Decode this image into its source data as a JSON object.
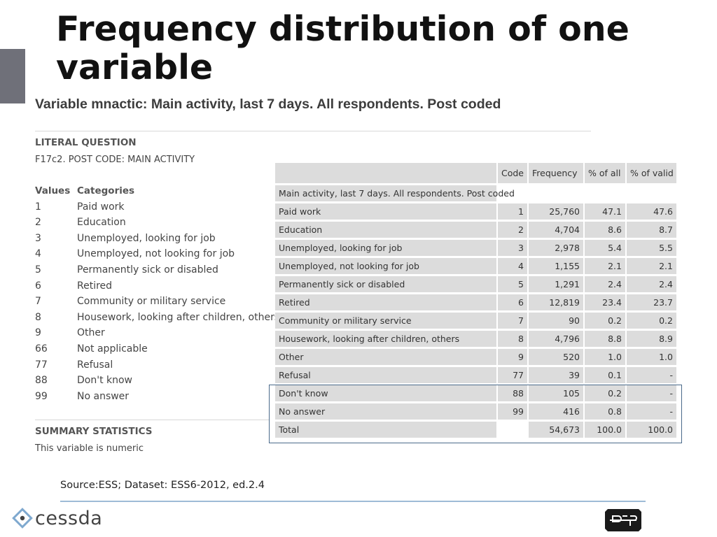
{
  "slide": {
    "title": "Frequency distribution of one variable",
    "source_note": "Source:ESS; Dataset: ESS6-2012, ed.2.4"
  },
  "variable": {
    "heading": "Variable mnactic: Main activity, last 7 days. All respondents. Post coded",
    "literal_question_heading": "LITERAL QUESTION",
    "literal_question_text": "F17c2. POST CODE: MAIN ACTIVITY",
    "values_header": "Values",
    "categories_header": "Categories",
    "values": [
      {
        "value": "1",
        "category": "Paid work"
      },
      {
        "value": "2",
        "category": "Education"
      },
      {
        "value": "3",
        "category": "Unemployed, looking for job"
      },
      {
        "value": "4",
        "category": "Unemployed, not looking for job"
      },
      {
        "value": "5",
        "category": "Permanently sick or disabled"
      },
      {
        "value": "6",
        "category": "Retired"
      },
      {
        "value": "7",
        "category": "Community or military service"
      },
      {
        "value": "8",
        "category": "Housework, looking after children, others"
      },
      {
        "value": "9",
        "category": "Other"
      },
      {
        "value": "66",
        "category": "Not applicable"
      },
      {
        "value": "77",
        "category": "Refusal"
      },
      {
        "value": "88",
        "category": "Don't know"
      },
      {
        "value": "99",
        "category": "No answer"
      }
    ],
    "summary_heading": "SUMMARY STATISTICS",
    "summary_text": "This variable is numeric"
  },
  "frequency_table": {
    "headers": {
      "code": "Code",
      "frequency": "Frequency",
      "pct_all": "% of all",
      "pct_valid": "% of valid"
    },
    "caption": "Main activity, last 7 days. All respondents. Post coded",
    "rows": [
      {
        "label": "Paid work",
        "code": "1",
        "frequency": "25,760",
        "pct_all": "47.1",
        "pct_valid": "47.6"
      },
      {
        "label": "Education",
        "code": "2",
        "frequency": "4,704",
        "pct_all": "8.6",
        "pct_valid": "8.7"
      },
      {
        "label": "Unemployed, looking for job",
        "code": "3",
        "frequency": "2,978",
        "pct_all": "5.4",
        "pct_valid": "5.5"
      },
      {
        "label": "Unemployed, not looking for job",
        "code": "4",
        "frequency": "1,155",
        "pct_all": "2.1",
        "pct_valid": "2.1"
      },
      {
        "label": "Permanently sick or disabled",
        "code": "5",
        "frequency": "1,291",
        "pct_all": "2.4",
        "pct_valid": "2.4"
      },
      {
        "label": "Retired",
        "code": "6",
        "frequency": "12,819",
        "pct_all": "23.4",
        "pct_valid": "23.7"
      },
      {
        "label": "Community or military service",
        "code": "7",
        "frequency": "90",
        "pct_all": "0.2",
        "pct_valid": "0.2"
      },
      {
        "label": "Housework, looking after children, others",
        "code": "8",
        "frequency": "4,796",
        "pct_all": "8.8",
        "pct_valid": "8.9"
      },
      {
        "label": "Other",
        "code": "9",
        "frequency": "520",
        "pct_all": "1.0",
        "pct_valid": "1.0"
      },
      {
        "label": "Refusal",
        "code": "77",
        "frequency": "39",
        "pct_all": "0.1",
        "pct_valid": "-"
      },
      {
        "label": "Don't know",
        "code": "88",
        "frequency": "105",
        "pct_all": "0.2",
        "pct_valid": "-"
      },
      {
        "label": "No answer",
        "code": "99",
        "frequency": "416",
        "pct_all": "0.8",
        "pct_valid": "-"
      }
    ],
    "total": {
      "label": "Total",
      "frequency": "54,673",
      "pct_all": "100.0",
      "pct_valid": "100.0"
    }
  },
  "logos": {
    "cessda_word": "cessda",
    "cessda_icon": "cessda-diamond-icon",
    "adp_icon": "adp-logo-icon",
    "footer_line_color": "#9ebbd6",
    "highlight_color": "#4a6a8a"
  }
}
